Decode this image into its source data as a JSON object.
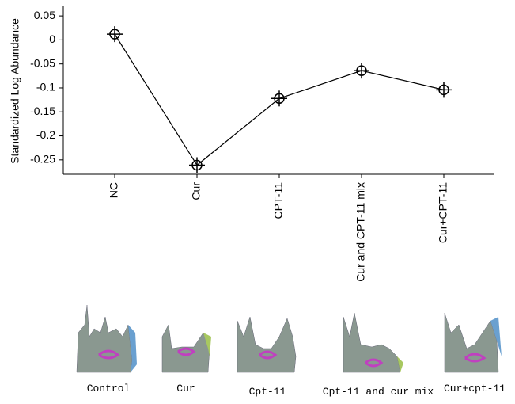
{
  "chart_data": {
    "type": "line",
    "y_label": "Standardized Log Abundance",
    "categories": [
      "NC",
      "Cur",
      "CPT-11",
      "Cur and CPT-11 mix",
      "Cur+CPT-11"
    ],
    "values": [
      0.012,
      -0.261,
      -0.122,
      -0.064,
      -0.104
    ],
    "color": "#000000",
    "ylim": [
      -0.28,
      0.07
    ],
    "yticks": [
      -0.25,
      -0.2,
      -0.15,
      -0.1,
      -0.05,
      0,
      0.05
    ]
  },
  "thumbnails": {
    "labels": [
      "Control",
      "Cur",
      "Cpt-11",
      "Cpt-11 and cur mix",
      "Cur+cpt-11"
    ]
  }
}
